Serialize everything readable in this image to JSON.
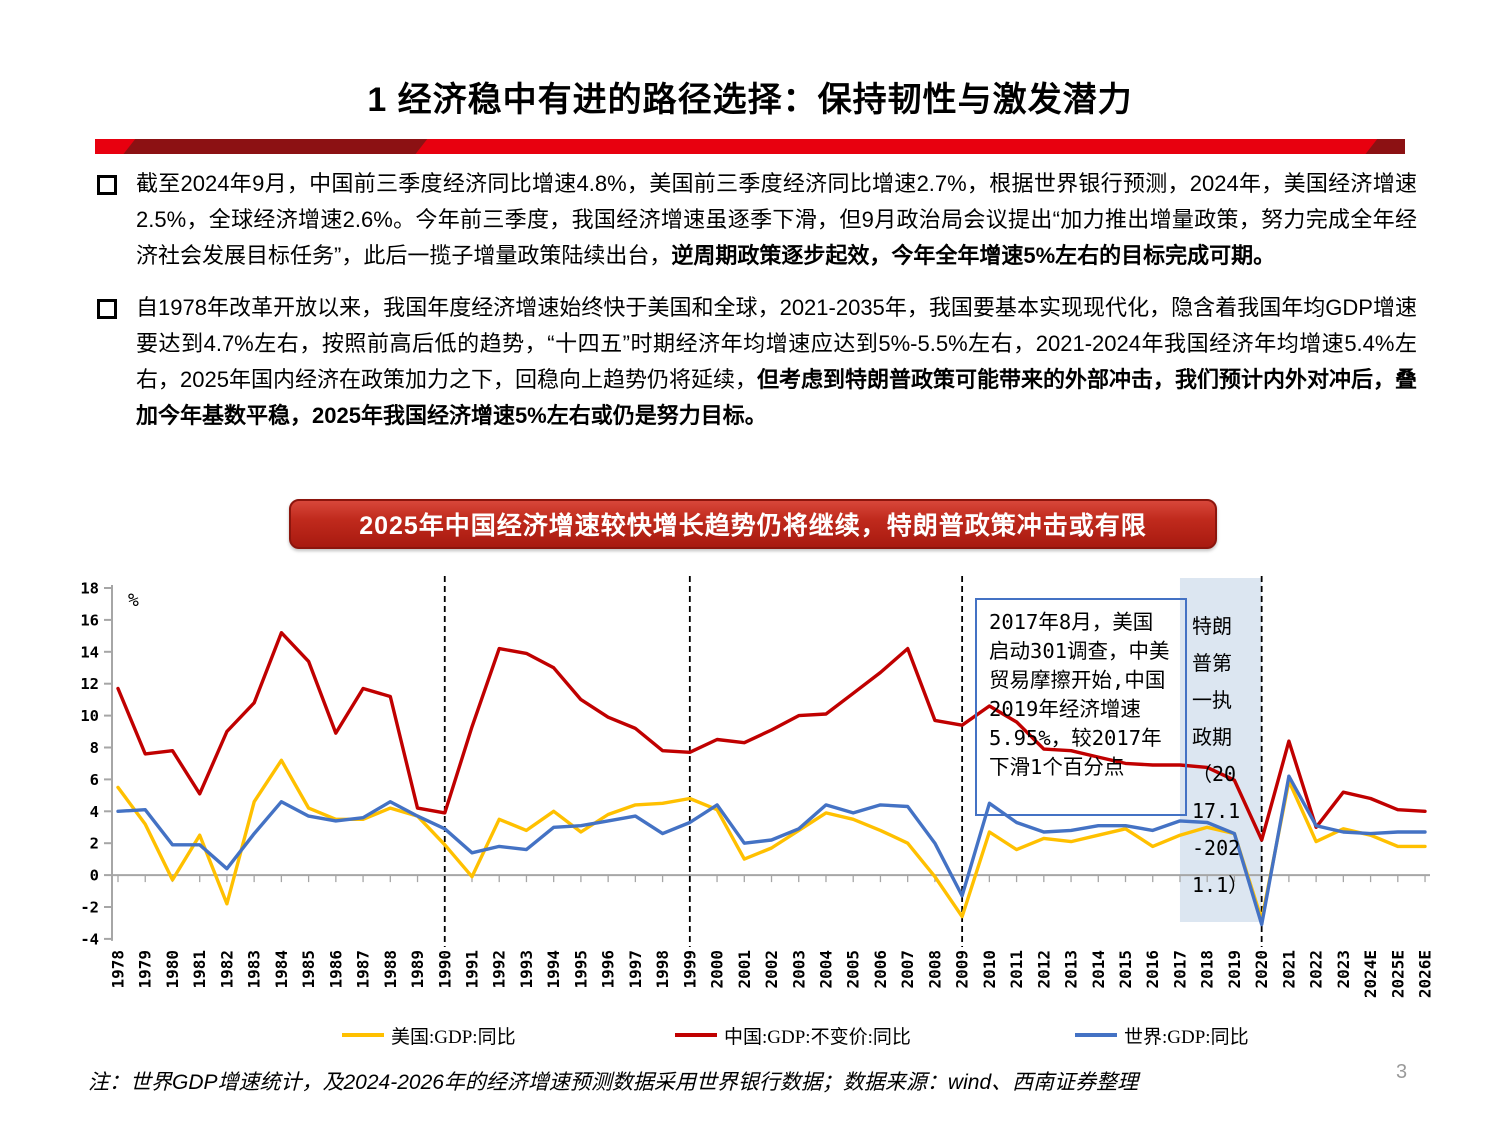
{
  "page": {
    "number": "3"
  },
  "header": {
    "title": "1 经济稳中有进的路径选择：保持韧性与激发潜力"
  },
  "bullets": [
    {
      "segments": [
        {
          "text": "截至2024年9月，中国前三季度经济同比增速4.8%，美国前三季度经济同比增速2.7%，根据世界银行预测，2024年，美国经济增速2.5%，全球经济增速2.6%。今年前三季度，我国经济增速虽逐季下滑，但9月政治局会议提出“加力推出增量政策，努力完成全年经济社会发展目标任务”，此后一揽子增量政策陆续出台，",
          "bold": false
        },
        {
          "text": "逆周期政策逐步起效，今年全年增速5%左右的目标完成可期。",
          "bold": true
        }
      ]
    },
    {
      "segments": [
        {
          "text": "自1978年改革开放以来，我国年度经济增速始终快于美国和全球，2021-2035年，我国要基本实现现代化，隐含着我国年均GDP增速要达到4.7%左右，按照前高后低的趋势，“十四五”时期经济年均增速应达到5%-5.5%左右，2021-2024年我国经济年均增速5.4%左右，2025年国内经济在政策加力之下，回稳向上趋势仍将延续，",
          "bold": false
        },
        {
          "text": "但考虑到特朗普政策可能带来的外部冲击，我们预计内外对冲后，叠加今年基数平稳，2025年我国经济增速5%左右或仍是努力目标。",
          "bold": true
        }
      ]
    }
  ],
  "banner": {
    "text": "2025年中国经济增速较快增长趋势仍将继续，特朗普政策冲击或有限"
  },
  "chart_data": {
    "type": "line",
    "unit_label": "%",
    "ylim": [
      -4,
      18
    ],
    "ytick_step": 2,
    "grid": "zero-line-only",
    "legend_position": "bottom",
    "x": [
      "1978",
      "1979",
      "1980",
      "1981",
      "1982",
      "1983",
      "1984",
      "1985",
      "1986",
      "1987",
      "1988",
      "1989",
      "1990",
      "1991",
      "1992",
      "1993",
      "1994",
      "1995",
      "1996",
      "1997",
      "1998",
      "1999",
      "2000",
      "2001",
      "2002",
      "2003",
      "2004",
      "2005",
      "2006",
      "2007",
      "2008",
      "2009",
      "2010",
      "2011",
      "2012",
      "2013",
      "2014",
      "2015",
      "2016",
      "2017",
      "2018",
      "2019",
      "2020",
      "2021",
      "2022",
      "2023",
      "2024E",
      "2025E",
      "2026E"
    ],
    "series": [
      {
        "name": "美国:GDP:同比",
        "color": "#FFC000",
        "values": [
          5.5,
          3.2,
          -0.3,
          2.5,
          -1.8,
          4.6,
          7.2,
          4.2,
          3.5,
          3.5,
          4.2,
          3.7,
          1.9,
          -0.1,
          3.5,
          2.8,
          4.0,
          2.7,
          3.8,
          4.4,
          4.5,
          4.8,
          4.1,
          1.0,
          1.7,
          2.8,
          3.9,
          3.5,
          2.8,
          2.0,
          -0.1,
          -2.6,
          2.7,
          1.6,
          2.3,
          2.1,
          2.5,
          2.9,
          1.8,
          2.5,
          3.0,
          2.6,
          -2.8,
          5.9,
          2.1,
          2.9,
          2.5,
          1.8,
          1.8
        ]
      },
      {
        "name": "中国:GDP:不变价:同比",
        "color": "#C00000",
        "values": [
          11.7,
          7.6,
          7.8,
          5.1,
          9.0,
          10.8,
          15.2,
          13.4,
          8.9,
          11.7,
          11.2,
          4.2,
          3.9,
          9.3,
          14.2,
          13.9,
          13.0,
          11.0,
          9.9,
          9.2,
          7.8,
          7.7,
          8.5,
          8.3,
          9.1,
          10.0,
          10.1,
          11.4,
          12.7,
          14.2,
          9.7,
          9.4,
          10.6,
          9.6,
          7.9,
          7.8,
          7.4,
          7.0,
          6.9,
          6.9,
          6.75,
          5.95,
          2.2,
          8.4,
          3.0,
          5.2,
          4.8,
          4.1,
          4.0
        ]
      },
      {
        "name": "世界:GDP:同比",
        "color": "#4472C4",
        "values": [
          4.0,
          4.1,
          1.9,
          1.9,
          0.4,
          2.6,
          4.6,
          3.7,
          3.4,
          3.6,
          4.6,
          3.7,
          2.9,
          1.4,
          1.8,
          1.6,
          3.0,
          3.1,
          3.4,
          3.7,
          2.6,
          3.3,
          4.4,
          2.0,
          2.2,
          2.9,
          4.4,
          3.9,
          4.4,
          4.3,
          2.0,
          -1.3,
          4.5,
          3.3,
          2.7,
          2.8,
          3.1,
          3.1,
          2.8,
          3.4,
          3.3,
          2.6,
          -3.1,
          6.2,
          3.1,
          2.7,
          2.6,
          2.7,
          2.7
        ]
      }
    ],
    "dashed_vlines": [
      "1990",
      "1999",
      "2009",
      "2020"
    ],
    "highlight_band": {
      "from": "2017",
      "to": "2020",
      "color": "#DCE6F1",
      "label": "特朗普第一执政期（2017.1-2021.1）"
    },
    "annotation_box": {
      "text": "2017年8月，美国启动301调查，中美贸易摩擦开始,中国2019年经济增速5.95%，较2017年下滑1个百分点"
    }
  },
  "footnote": {
    "text": "注：世界GDP增速统计，及2024-2026年的经济增速预测数据采用世界银行数据；数据来源：wind、西南证券整理"
  }
}
